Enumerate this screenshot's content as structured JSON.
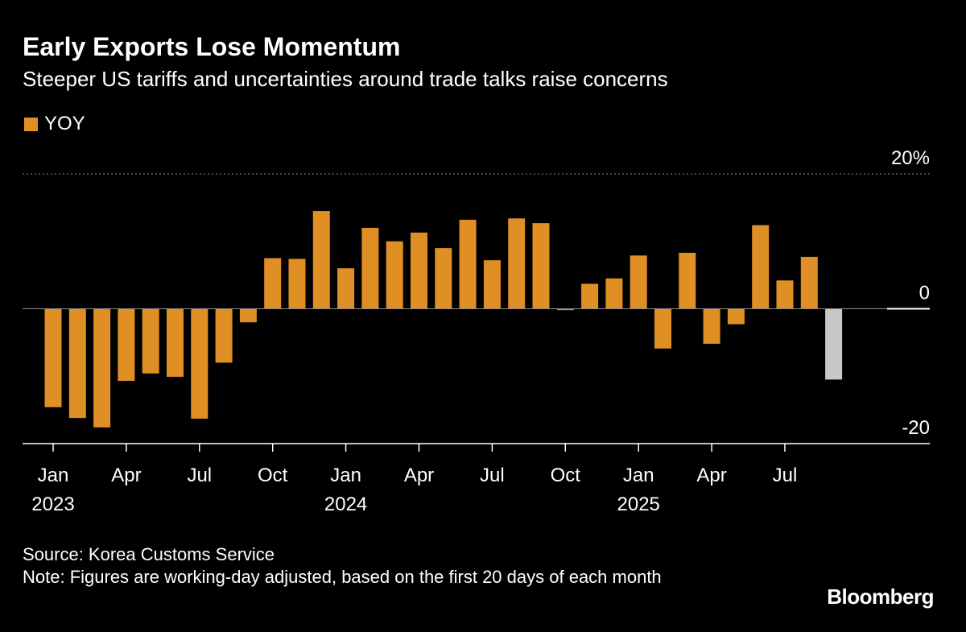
{
  "header": {
    "title": "Early Exports Lose Momentum",
    "subtitle": "Steeper US tariffs and uncertainties around trade talks raise concerns"
  },
  "legend": {
    "label": "YOY",
    "color": "#e08f24"
  },
  "footer": {
    "source": "Source: Korea Customs Service",
    "note": "Note: Figures are working-day adjusted, based on the first 20 days of each month"
  },
  "brand": {
    "logo_text": "Bloomberg"
  },
  "chart_data": {
    "type": "bar",
    "series_name": "YOY",
    "months": [
      "Jan 2023",
      "Feb 2023",
      "Mar 2023",
      "Apr 2023",
      "May 2023",
      "Jun 2023",
      "Jul 2023",
      "Aug 2023",
      "Sep 2023",
      "Oct 2023",
      "Nov 2023",
      "Dec 2023",
      "Jan 2024",
      "Feb 2024",
      "Mar 2024",
      "Apr 2024",
      "May 2024",
      "Jun 2024",
      "Jul 2024",
      "Aug 2024",
      "Sep 2024",
      "Oct 2024",
      "Nov 2024",
      "Dec 2024",
      "Jan 2025",
      "Feb 2025",
      "Mar 2025",
      "Apr 2025",
      "May 2025",
      "Jun 2025",
      "Jul 2025",
      "Aug 2025",
      "Sep 2025"
    ],
    "values": [
      -14.6,
      -16.2,
      -17.6,
      -10.7,
      -9.6,
      -10.1,
      -16.3,
      -8.0,
      -2.0,
      7.5,
      7.4,
      14.5,
      6.0,
      12.0,
      10.0,
      11.3,
      9.0,
      13.2,
      7.2,
      13.4,
      12.7,
      -0.2,
      3.7,
      4.5,
      7.9,
      -5.9,
      8.3,
      -5.2,
      -2.3,
      12.4,
      4.2,
      7.7,
      -10.5
    ],
    "colors": [
      "#e08f24",
      "#e08f24",
      "#e08f24",
      "#e08f24",
      "#e08f24",
      "#e08f24",
      "#e08f24",
      "#e08f24",
      "#e08f24",
      "#e08f24",
      "#e08f24",
      "#e08f24",
      "#e08f24",
      "#e08f24",
      "#e08f24",
      "#e08f24",
      "#e08f24",
      "#e08f24",
      "#e08f24",
      "#e08f24",
      "#e08f24",
      "#e08f24",
      "#e08f24",
      "#e08f24",
      "#e08f24",
      "#e08f24",
      "#e08f24",
      "#e08f24",
      "#e08f24",
      "#e08f24",
      "#e08f24",
      "#e08f24",
      "#c8c8c8"
    ],
    "ylim": [
      -20,
      20
    ],
    "y_ticks": [
      {
        "value": 20,
        "label": "20%"
      },
      {
        "value": 0,
        "label": "0"
      },
      {
        "value": -20,
        "label": "-20"
      }
    ],
    "x_ticks": [
      {
        "index": 0,
        "label": "Jan",
        "year": "2023"
      },
      {
        "index": 3,
        "label": "Apr",
        "year": ""
      },
      {
        "index": 6,
        "label": "Jul",
        "year": ""
      },
      {
        "index": 9,
        "label": "Oct",
        "year": ""
      },
      {
        "index": 12,
        "label": "Jan",
        "year": "2024"
      },
      {
        "index": 15,
        "label": "Apr",
        "year": ""
      },
      {
        "index": 18,
        "label": "Jul",
        "year": ""
      },
      {
        "index": 21,
        "label": "Oct",
        "year": ""
      },
      {
        "index": 24,
        "label": "Jan",
        "year": "2025"
      },
      {
        "index": 27,
        "label": "Apr",
        "year": ""
      },
      {
        "index": 30,
        "label": "Jul",
        "year": ""
      }
    ]
  }
}
